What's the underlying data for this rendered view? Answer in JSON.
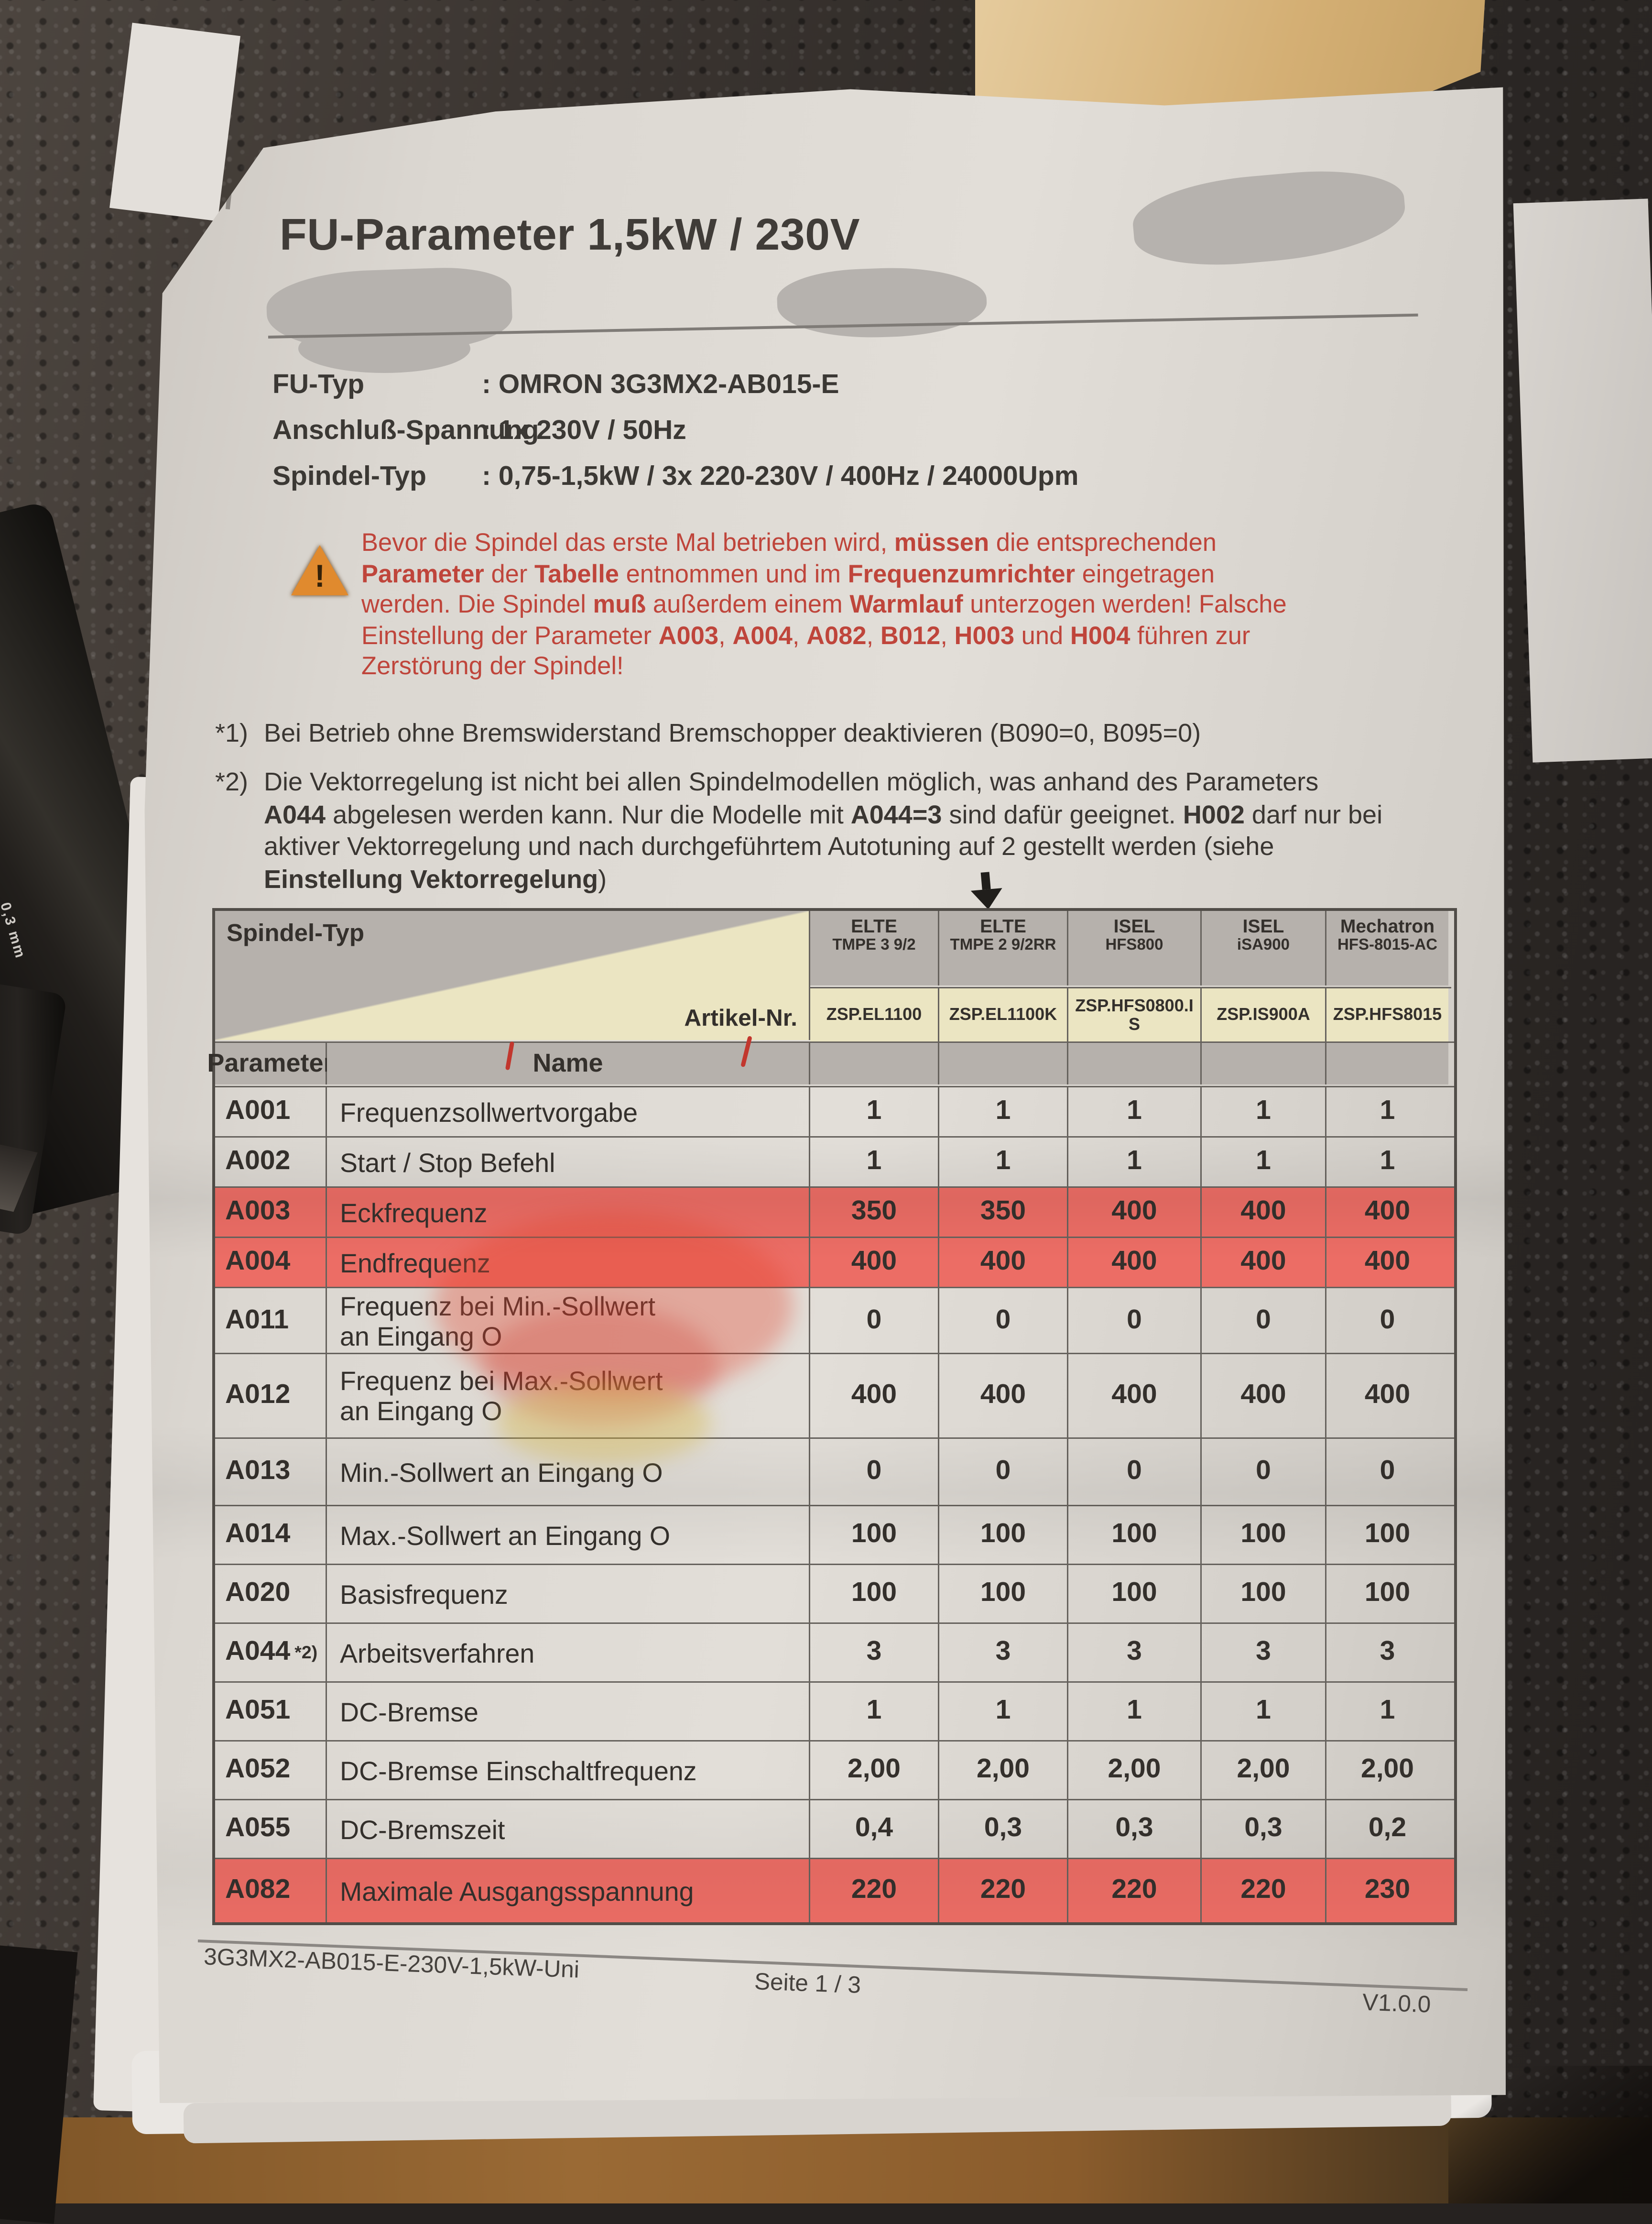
{
  "photo": {
    "pen_label": "0,3 mm"
  },
  "colors": {
    "highlight_row": "#ec6d65",
    "warning_text": "#bf453b",
    "header_gray": "#b6b1ac",
    "artikel_yellow": "#ebe5c2"
  },
  "document": {
    "title": "FU-Parameter 1,5kW / 230V",
    "info_rows": [
      {
        "label": "FU-Typ",
        "value": ": OMRON 3G3MX2-AB015-E"
      },
      {
        "label": "Anschluß-Spannung",
        "value": ": 1x 230V / 50Hz"
      },
      {
        "label": "Spindel-Typ",
        "value": ": 0,75-1,5kW / 3x 220-230V / 400Hz / 24000Upm"
      }
    ],
    "warning": {
      "icon_glyph": "!",
      "segments": [
        {
          "t": "Bevor die Spindel das erste Mal betrieben wird, ",
          "b": false
        },
        {
          "t": "müssen",
          "b": true
        },
        {
          "t": " die entsprechenden ",
          "b": false
        },
        {
          "t": "Parameter",
          "b": true
        },
        {
          "t": " der ",
          "b": false
        },
        {
          "t": "Tabelle",
          "b": true
        },
        {
          "t": " entnommen und im ",
          "b": false
        },
        {
          "t": "Frequenzumrichter",
          "b": true
        },
        {
          "t": " eingetragen werden. Die Spindel ",
          "b": false
        },
        {
          "t": "muß",
          "b": true
        },
        {
          "t": " außerdem einem ",
          "b": false
        },
        {
          "t": "Warmlauf",
          "b": true
        },
        {
          "t": " unterzogen werden! Falsche Einstellung der Parameter ",
          "b": false
        },
        {
          "t": "A003",
          "b": true
        },
        {
          "t": ", ",
          "b": false
        },
        {
          "t": "A004",
          "b": true
        },
        {
          "t": ", ",
          "b": false
        },
        {
          "t": "A082",
          "b": true
        },
        {
          "t": ", ",
          "b": false
        },
        {
          "t": "B012",
          "b": true
        },
        {
          "t": ", ",
          "b": false
        },
        {
          "t": "H003",
          "b": true
        },
        {
          "t": " und ",
          "b": false
        },
        {
          "t": "H004",
          "b": true
        },
        {
          "t": " führen zur Zerstörung der Spindel!",
          "b": false
        }
      ]
    },
    "footnotes": [
      {
        "marker": "*1)",
        "segments": [
          {
            "t": "Bei Betrieb ohne Bremswiderstand Bremschopper deaktivieren (B090=0, B095=0)",
            "b": false
          }
        ]
      },
      {
        "marker": "*2)",
        "segments": [
          {
            "t": "Die Vektorregelung ist nicht bei allen Spindelmodellen möglich, was anhand des Parameters ",
            "b": false
          },
          {
            "t": "A044",
            "b": true
          },
          {
            "t": " abgelesen werden kann. Nur die Modelle mit ",
            "b": false
          },
          {
            "t": "A044=3",
            "b": true
          },
          {
            "t": " sind dafür geeignet. ",
            "b": false
          },
          {
            "t": "H002",
            "b": true
          },
          {
            "t": " darf nur bei aktiver Vektorregelung und nach durchgeführtem Autotuning auf 2 gestellt werden (siehe ",
            "b": false
          },
          {
            "t": "Einstellung Vektorregelung",
            "b": true
          },
          {
            "t": ")",
            "b": false
          }
        ]
      }
    ],
    "table": {
      "corner_top": "Spindel-Typ",
      "corner_bottom": "Artikel-Nr.",
      "param_header": "Parameter",
      "name_header": "Name",
      "col_headers": [
        {
          "brand": "ELTE",
          "model": "TMPE 3 9/2",
          "artikel": "ZSP.EL1100"
        },
        {
          "brand": "ELTE",
          "model": "TMPE 2 9/2RR",
          "artikel": "ZSP.EL1100K"
        },
        {
          "brand": "ISEL",
          "model": "HFS800",
          "artikel": "ZSP.HFS0800.IS"
        },
        {
          "brand": "ISEL",
          "model": "iSA900",
          "artikel": "ZSP.IS900A"
        },
        {
          "brand": "Mechatron",
          "model": "HFS-8015-AC",
          "artikel": "ZSP.HFS8015"
        }
      ],
      "rows": [
        {
          "param": "A001",
          "suffix": "",
          "name": "Frequenzsollwertvorgabe",
          "values": [
            "1",
            "1",
            "1",
            "1",
            "1"
          ],
          "highlight": false
        },
        {
          "param": "A002",
          "suffix": "",
          "name": "Start / Stop Befehl",
          "values": [
            "1",
            "1",
            "1",
            "1",
            "1"
          ],
          "highlight": false
        },
        {
          "param": "A003",
          "suffix": "",
          "name": "Eckfrequenz",
          "values": [
            "350",
            "350",
            "400",
            "400",
            "400"
          ],
          "highlight": true
        },
        {
          "param": "A004",
          "suffix": "",
          "name": "Endfrequenz",
          "values": [
            "400",
            "400",
            "400",
            "400",
            "400"
          ],
          "highlight": true
        },
        {
          "param": "A011",
          "suffix": "",
          "name": "Frequenz bei Min.-Sollwert\nan Eingang O",
          "values": [
            "0",
            "0",
            "0",
            "0",
            "0"
          ],
          "highlight": false
        },
        {
          "param": "A012",
          "suffix": "",
          "name": "Frequenz bei Max.-Sollwert\nan Eingang O",
          "values": [
            "400",
            "400",
            "400",
            "400",
            "400"
          ],
          "highlight": false
        },
        {
          "param": "A013",
          "suffix": "",
          "name": "Min.-Sollwert an Eingang O",
          "values": [
            "0",
            "0",
            "0",
            "0",
            "0"
          ],
          "highlight": false
        },
        {
          "param": "A014",
          "suffix": "",
          "name": "Max.-Sollwert an Eingang O",
          "values": [
            "100",
            "100",
            "100",
            "100",
            "100"
          ],
          "highlight": false
        },
        {
          "param": "A020",
          "suffix": "",
          "name": "Basisfrequenz",
          "values": [
            "100",
            "100",
            "100",
            "100",
            "100"
          ],
          "highlight": false
        },
        {
          "param": "A044",
          "suffix": "*2)",
          "name": "Arbeitsverfahren",
          "values": [
            "3",
            "3",
            "3",
            "3",
            "3"
          ],
          "highlight": false
        },
        {
          "param": "A051",
          "suffix": "",
          "name": "DC-Bremse",
          "values": [
            "1",
            "1",
            "1",
            "1",
            "1"
          ],
          "highlight": false
        },
        {
          "param": "A052",
          "suffix": "",
          "name": "DC-Bremse Einschaltfrequenz",
          "values": [
            "2,00",
            "2,00",
            "2,00",
            "2,00",
            "2,00"
          ],
          "highlight": false
        },
        {
          "param": "A055",
          "suffix": "",
          "name": "DC-Bremszeit",
          "values": [
            "0,4",
            "0,3",
            "0,3",
            "0,3",
            "0,2"
          ],
          "highlight": false
        },
        {
          "param": "A082",
          "suffix": "",
          "name": "Maximale Ausgangsspannung",
          "values": [
            "220",
            "220",
            "220",
            "220",
            "230"
          ],
          "highlight": true
        }
      ]
    },
    "footer": {
      "doc_id": "3G3MX2-AB015-E-230V-1,5kW-Uni",
      "page": "Seite 1 / 3",
      "version": "V1.0.0"
    }
  }
}
